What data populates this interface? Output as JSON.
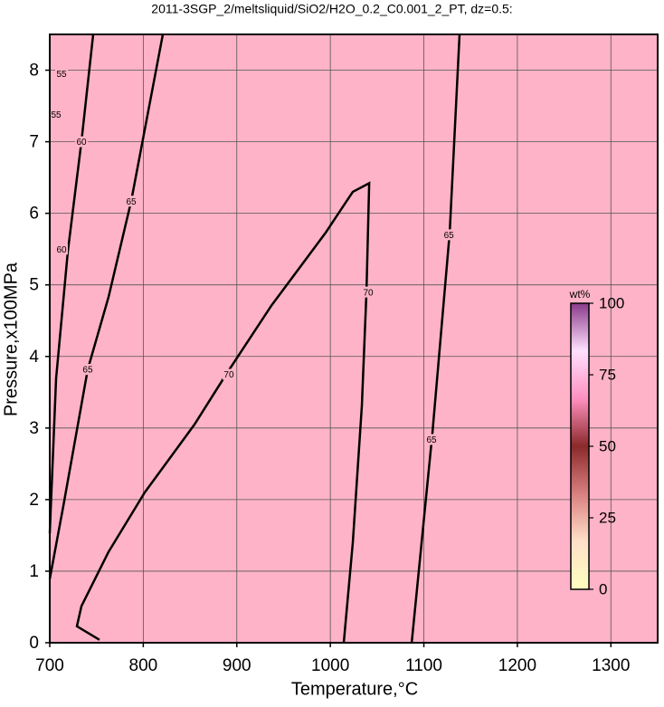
{
  "chart_data": {
    "type": "contour",
    "title": "2011-3SGP_2/meltsliquid/SiO2/H2O_0.2_C0.001_2_PT, dz=0.5:",
    "x_label": "Temperature,°C",
    "y_label": "Pressure,x100MPa",
    "xlim": [
      700,
      1350
    ],
    "ylim": [
      0,
      8.5
    ],
    "xticks": [
      700,
      800,
      900,
      1000,
      1100,
      1200,
      1300
    ],
    "yticks": [
      0,
      1,
      2,
      3,
      4,
      5,
      6,
      7,
      8
    ],
    "grid": true,
    "fill_color": "#ffb3c8",
    "line_color": "#000000",
    "contours": [
      {
        "level": 60,
        "x": [
          746.4,
          733.9,
          719.3,
          706.8,
          700
        ],
        "y": [
          8.5,
          7.0,
          5.47,
          3.69,
          1.53
        ]
      },
      {
        "level": 65,
        "x": [
          820.9,
          787.1,
          762.9,
          740.6,
          714.5,
          700
        ],
        "y": [
          8.5,
          6.17,
          4.83,
          3.82,
          1.91,
          0.89
        ]
      },
      {
        "level": 70,
        "x": [
          1014.4,
          1024,
          1033.7,
          1038.6,
          1041.5,
          1024,
          995,
          937,
          888.6,
          854.8,
          801.6,
          762.9,
          733.9,
          729,
          753.2
        ],
        "y": [
          0,
          1.4,
          3.31,
          4.9,
          6.42,
          6.3,
          5.73,
          4.71,
          3.75,
          3.05,
          2.1,
          1.27,
          0.51,
          0.23,
          0.04
        ]
      },
      {
        "level": 65,
        "x": [
          1138.2,
          1127.6,
          1109.2,
          1087
        ],
        "y": [
          8.5,
          5.73,
          2.93,
          0
        ]
      }
    ],
    "contour_labels": [
      {
        "value": 55,
        "x": 712.6,
        "y": 7.95
      },
      {
        "value": 55,
        "x": 706.8,
        "y": 7.38
      },
      {
        "value": 60,
        "x": 733.9,
        "y": 7.0
      },
      {
        "value": 60,
        "x": 712.6,
        "y": 5.5
      },
      {
        "value": 65,
        "x": 787.1,
        "y": 6.17
      },
      {
        "value": 65,
        "x": 740.6,
        "y": 3.82
      },
      {
        "value": 70,
        "x": 891.5,
        "y": 3.75
      },
      {
        "value": 70,
        "x": 1040.5,
        "y": 4.9
      },
      {
        "value": 65,
        "x": 1126.7,
        "y": 5.7
      },
      {
        "value": 65,
        "x": 1108.2,
        "y": 2.84
      }
    ],
    "colorbar": {
      "label": "wt%",
      "lim": [
        0,
        100
      ],
      "ticks": [
        0,
        25,
        50,
        75,
        100
      ],
      "colors": [
        "#ffffc0",
        "#ffe0c8",
        "#d98080",
        "#8b2a2a",
        "#ff90c0",
        "#ffe0ff",
        "#8a3a8a"
      ]
    }
  }
}
